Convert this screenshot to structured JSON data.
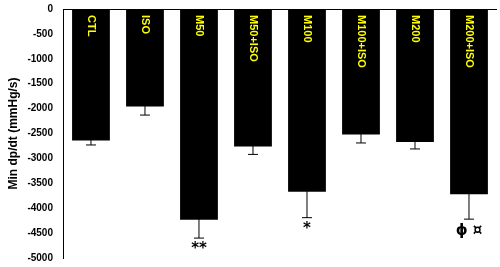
{
  "chart_data": {
    "type": "bar",
    "y_label": "Min dp/dt (mmHg/s)",
    "categories": [
      "CTL",
      "ISO",
      "M50",
      "M50+ISO",
      "M100",
      "M100+ISO",
      "M200",
      "M200+ISO"
    ],
    "values": [
      -2640,
      -1960,
      -4230,
      -2760,
      -3670,
      -2520,
      -2670,
      -3720
    ],
    "errors": [
      90,
      170,
      370,
      160,
      520,
      170,
      140,
      500
    ],
    "color": "#000000",
    "category_label_color": "#ffff00",
    "annotations": [
      {
        "category": "M50",
        "text": "**"
      },
      {
        "category": "M100",
        "text": "*"
      },
      {
        "category": "M200+ISO",
        "text": "ϕ ¤"
      }
    ],
    "ylim": [
      -5000,
      0
    ],
    "yticks": [
      -5000,
      -4500,
      -4000,
      -3500,
      -3000,
      -2500,
      -2000,
      -1500,
      -1000,
      -500,
      0
    ],
    "grid": false,
    "tick_labels": "y",
    "data_labels": false
  }
}
